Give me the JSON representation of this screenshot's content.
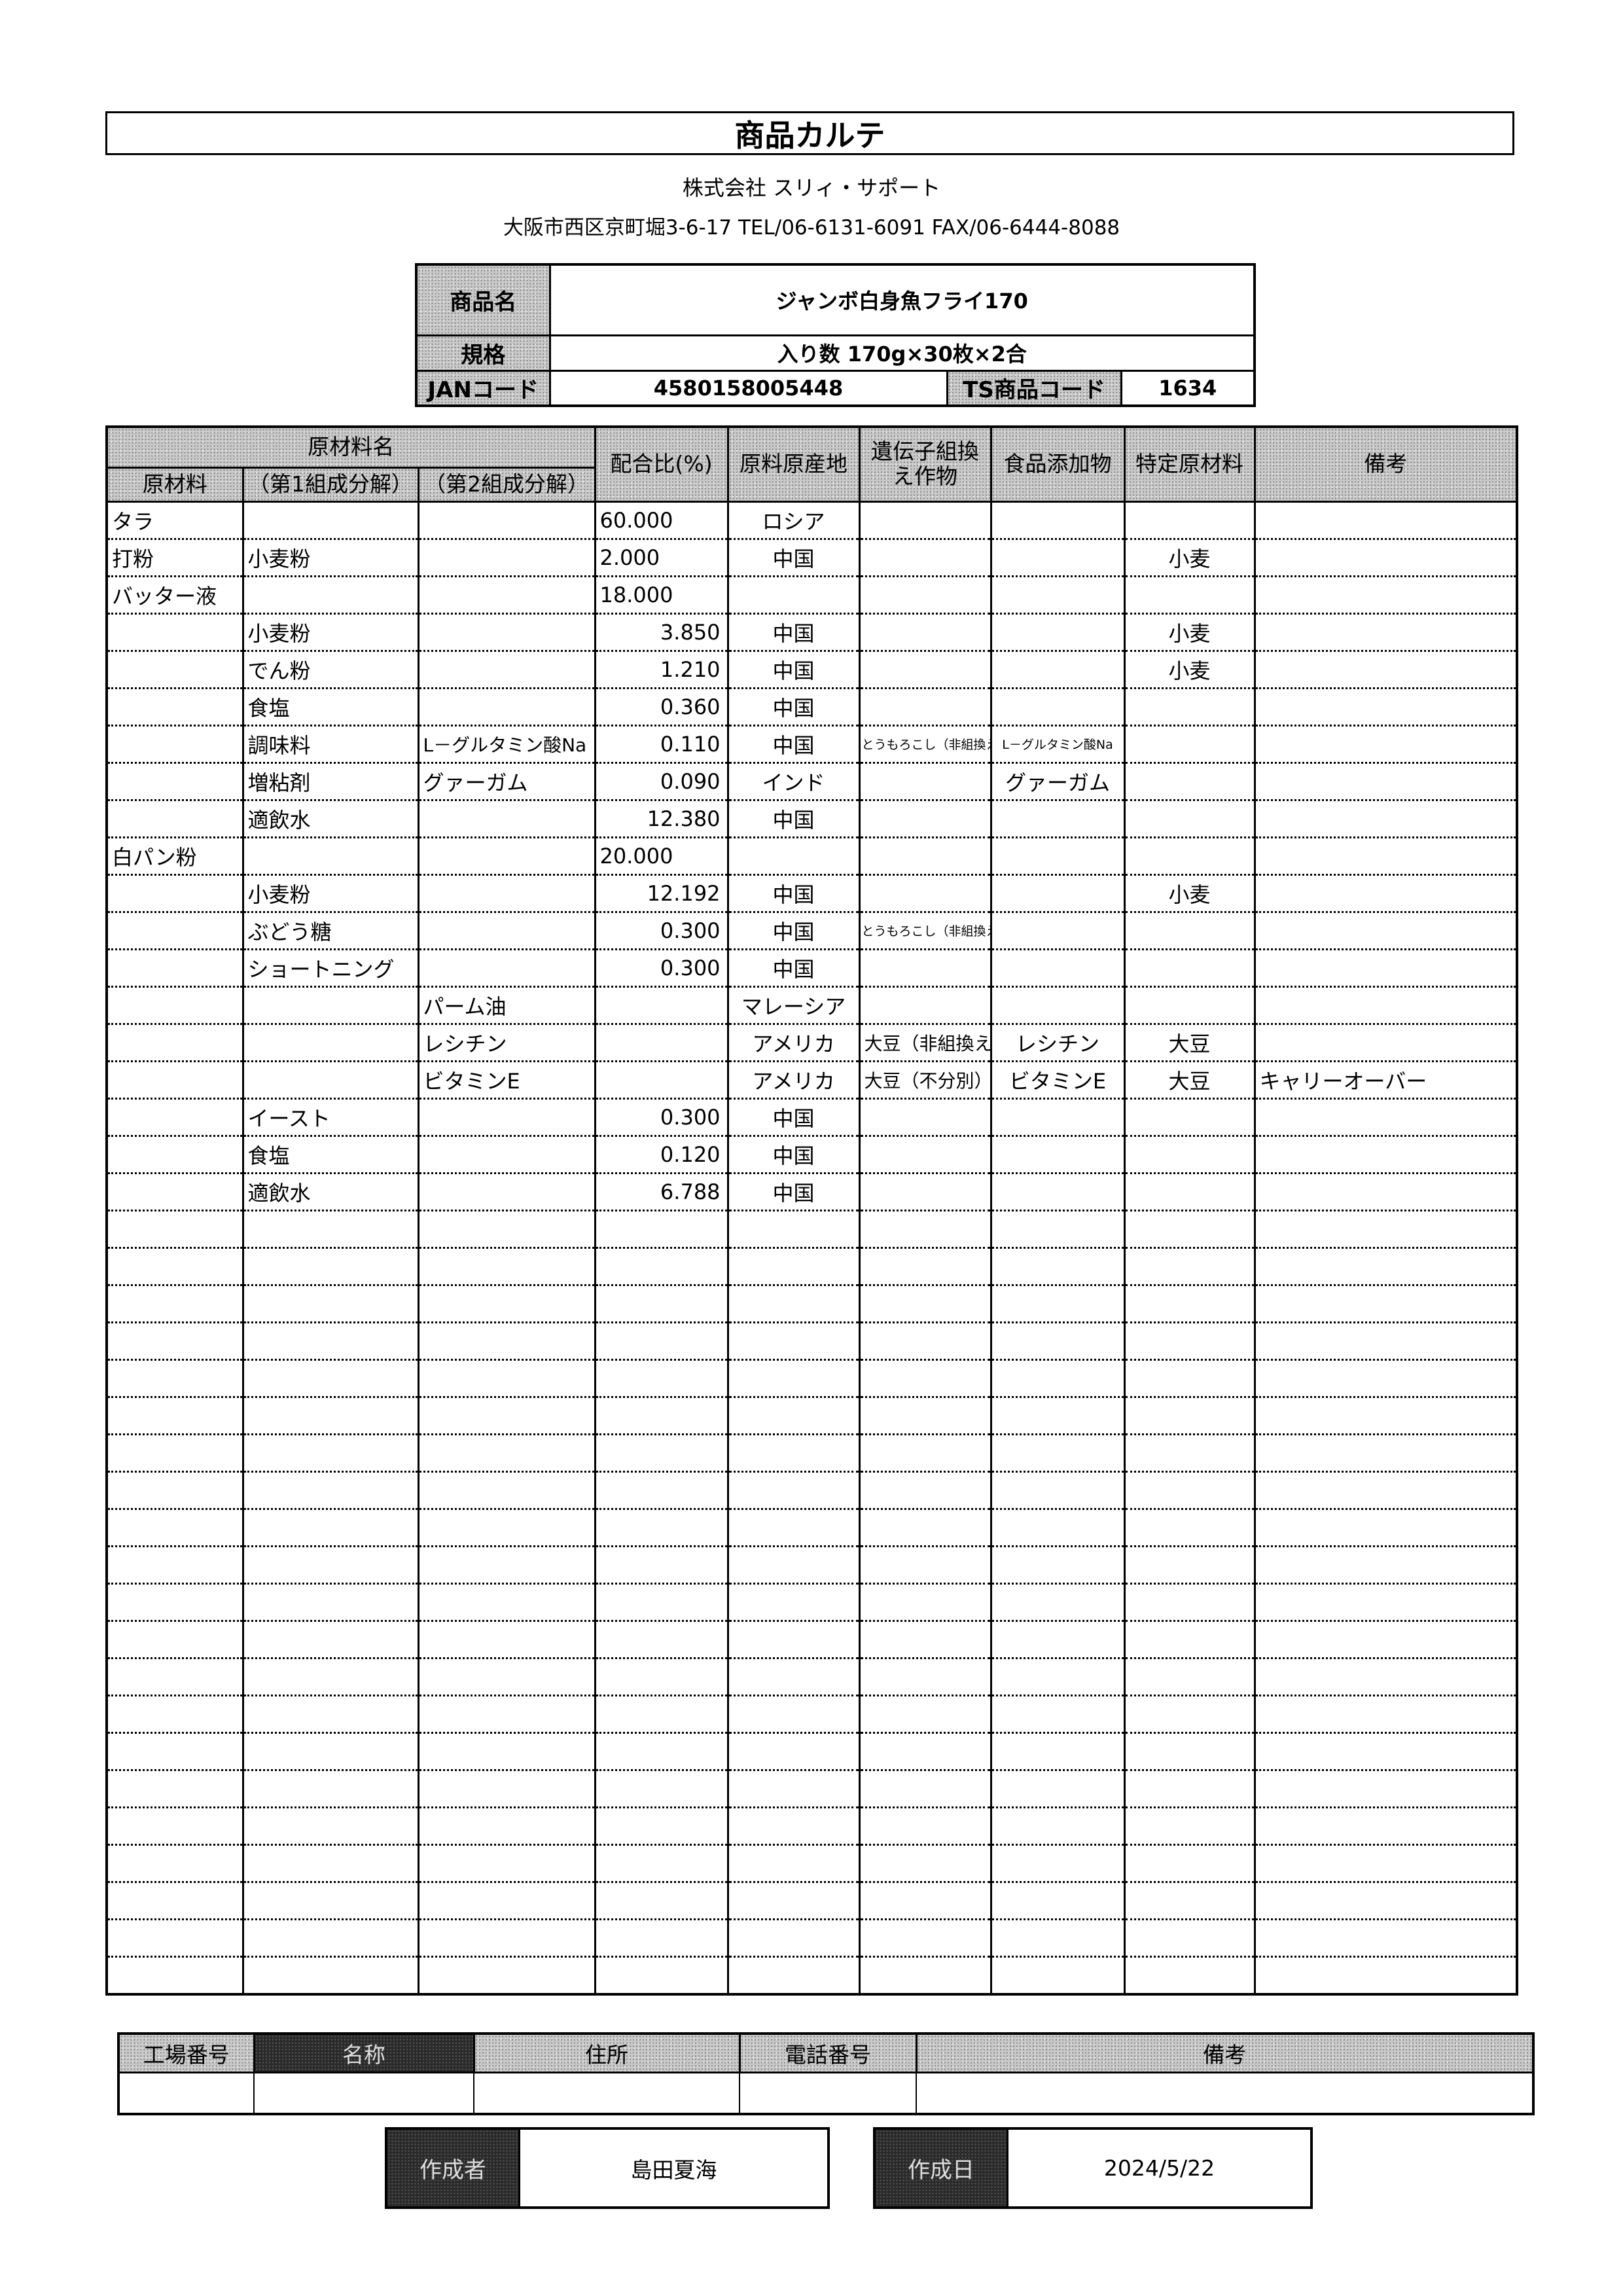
{
  "document_title": "商品カルテ",
  "company": "株式会社 スリィ・サポート",
  "address": "大阪市西区京町堀3-6-17  TEL/06-6131-6091 FAX/06-6444-8088",
  "product": {
    "name_label": "商品名",
    "name": "ジャンボ白身魚フライ170",
    "spec_label": "規格",
    "spec": "入り数  170g×30枚×2合",
    "jan_label": "JANコード",
    "jan": "4580158005448",
    "ts_label": "TS商品コード",
    "ts_code": "1634"
  },
  "table": {
    "group_header": "原材料名",
    "headers": {
      "raw": "原材料",
      "c1": "（第1組成分解）",
      "c2": "（第2組成分解）",
      "ratio": "配合比(%)",
      "origin": "原料原産地",
      "gmo": "遺伝子組換え作物",
      "additive": "食品添加物",
      "allergen": "特定原材料",
      "note": "備考"
    },
    "total_rows": 40,
    "rows": [
      {
        "raw": "タラ",
        "c1": "",
        "c2": "",
        "ratio": "60.000",
        "origin": "ロシア",
        "gmo": "",
        "additive": "",
        "allergen": "",
        "note": ""
      },
      {
        "raw": "打粉",
        "c1": "小麦粉",
        "c2": "",
        "ratio": "2.000",
        "origin": "中国",
        "gmo": "",
        "additive": "",
        "allergen": "小麦",
        "note": ""
      },
      {
        "raw": "バッター液",
        "c1": "",
        "c2": "",
        "ratio": "18.000",
        "origin": "",
        "gmo": "",
        "additive": "",
        "allergen": "",
        "note": ""
      },
      {
        "raw": "",
        "c1": "小麦粉",
        "c2": "",
        "ratio": "3.850",
        "origin": "中国",
        "gmo": "",
        "additive": "",
        "allergen": "小麦",
        "note": ""
      },
      {
        "raw": "",
        "c1": "でん粉",
        "c2": "",
        "ratio": "1.210",
        "origin": "中国",
        "gmo": "",
        "additive": "",
        "allergen": "小麦",
        "note": ""
      },
      {
        "raw": "",
        "c1": "食塩",
        "c2": "",
        "ratio": "0.360",
        "origin": "中国",
        "gmo": "",
        "additive": "",
        "allergen": "",
        "note": ""
      },
      {
        "raw": "",
        "c1": "調味料",
        "c2": "L－グルタミン酸Na",
        "ratio": "0.110",
        "origin": "中国",
        "gmo": "とうもろこし（非組換え）",
        "additive": "L－グルタミン酸Na",
        "allergen": "",
        "note": ""
      },
      {
        "raw": "",
        "c1": "増粘剤",
        "c2": "グァーガム",
        "ratio": "0.090",
        "origin": "インド",
        "gmo": "",
        "additive": "グァーガム",
        "allergen": "",
        "note": ""
      },
      {
        "raw": "",
        "c1": "適飲水",
        "c2": "",
        "ratio": "12.380",
        "origin": "中国",
        "gmo": "",
        "additive": "",
        "allergen": "",
        "note": ""
      },
      {
        "raw": "白パン粉",
        "c1": "",
        "c2": "",
        "ratio": "20.000",
        "origin": "",
        "gmo": "",
        "additive": "",
        "allergen": "",
        "note": ""
      },
      {
        "raw": "",
        "c1": "小麦粉",
        "c2": "",
        "ratio": "12.192",
        "origin": "中国",
        "gmo": "",
        "additive": "",
        "allergen": "小麦",
        "note": ""
      },
      {
        "raw": "",
        "c1": "ぶどう糖",
        "c2": "",
        "ratio": "0.300",
        "origin": "中国",
        "gmo": "とうもろこし（非組換え）",
        "additive": "",
        "allergen": "",
        "note": ""
      },
      {
        "raw": "",
        "c1": "ショートニング",
        "c2": "",
        "ratio": "0.300",
        "origin": "中国",
        "gmo": "",
        "additive": "",
        "allergen": "",
        "note": ""
      },
      {
        "raw": "",
        "c1": "",
        "c2": "パーム油",
        "ratio": "",
        "origin": "マレーシア",
        "gmo": "",
        "additive": "",
        "allergen": "",
        "note": ""
      },
      {
        "raw": "",
        "c1": "",
        "c2": "レシチン",
        "ratio": "",
        "origin": "アメリカ",
        "gmo": "大豆（非組換え）",
        "additive": "レシチン",
        "allergen": "大豆",
        "note": ""
      },
      {
        "raw": "",
        "c1": "",
        "c2": "ビタミンE",
        "ratio": "",
        "origin": "アメリカ",
        "gmo": "大豆（不分別）",
        "additive": "ビタミンE",
        "allergen": "大豆",
        "note": "キャリーオーバー"
      },
      {
        "raw": "",
        "c1": "イースト",
        "c2": "",
        "ratio": "0.300",
        "origin": "中国",
        "gmo": "",
        "additive": "",
        "allergen": "",
        "note": ""
      },
      {
        "raw": "",
        "c1": "食塩",
        "c2": "",
        "ratio": "0.120",
        "origin": "中国",
        "gmo": "",
        "additive": "",
        "allergen": "",
        "note": ""
      },
      {
        "raw": "",
        "c1": "適飲水",
        "c2": "",
        "ratio": "6.788",
        "origin": "中国",
        "gmo": "",
        "additive": "",
        "allergen": "",
        "note": ""
      }
    ]
  },
  "factory": {
    "headers": [
      "工場番号",
      "名称",
      "住所",
      "電話番号",
      "備考"
    ]
  },
  "footer": {
    "author_label": "作成者",
    "author": "島田夏海",
    "date_label": "作成日",
    "date": "2024/5/22"
  }
}
